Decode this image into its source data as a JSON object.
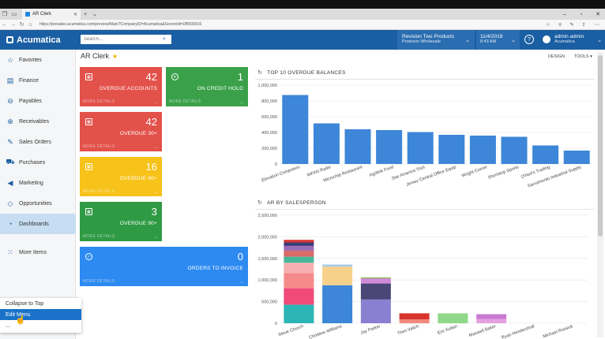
{
  "browser": {
    "tab_title": "AR Clerk",
    "url": "https://presales.acumatica.com/preview/Main?CompanyID=Acumatica&ScreenId=DB000016"
  },
  "header": {
    "logo_text": "Acumatica",
    "search_placeholder": "Search...",
    "company_name": "Revision Two Products",
    "company_branch": "Products Wholesale",
    "date": "11/4/2019",
    "time": "8:43 AM",
    "user_name": "admin admin",
    "user_company": "Acumatica"
  },
  "sidebar": {
    "items": [
      {
        "label": "Favorites",
        "icon": "star-icon"
      },
      {
        "label": "Finance",
        "icon": "calculator-icon"
      },
      {
        "label": "Payables",
        "icon": "minus-circle-icon"
      },
      {
        "label": "Receivables",
        "icon": "plus-circle-icon"
      },
      {
        "label": "Sales Orders",
        "icon": "edit-icon"
      },
      {
        "label": "Purchases",
        "icon": "cart-icon"
      },
      {
        "label": "Marketing",
        "icon": "megaphone-icon"
      },
      {
        "label": "Opportunities",
        "icon": "tag-icon"
      },
      {
        "label": "Dashboards",
        "icon": "gauge-icon"
      },
      {
        "label": "More Items",
        "icon": "grid-icon"
      }
    ],
    "active": "Dashboards",
    "menu": {
      "collapse": "Collapse to Top",
      "edit": "Edit Menu",
      "more": "..."
    }
  },
  "workspace": {
    "title": "AR Clerk",
    "design": "DESIGN",
    "tools": "TOOLS"
  },
  "tiles": [
    {
      "value": "42",
      "caption": "OVERDUE ACCOUNTS",
      "color": "#e2514a",
      "more": "MORE DETAILS"
    },
    {
      "value": "1",
      "caption": "ON CREDIT HOLD",
      "color": "#3aa14a",
      "more": "MORE DETAILS"
    },
    {
      "value": "42",
      "caption": "OVERDUE 30+",
      "color": "#e2514a",
      "more": "MORE DETAILS"
    },
    {
      "value": "16",
      "caption": "OVERDUE 60+",
      "color": "#f7c21a",
      "more": "MORE DETAILS"
    },
    {
      "value": "3",
      "caption": "OVERDUE 90+",
      "color": "#2f9a44",
      "more": "MORE DETAILS"
    },
    {
      "value": "0",
      "caption": "ORDERS TO INVOICE",
      "color": "#2d8af0",
      "more": "MORE DETAILS"
    }
  ],
  "chart_data": [
    {
      "type": "bar",
      "title": "TOP 10 OVERDUE BALANCES",
      "categories": [
        "Elevation Computers",
        "WFAN Radio",
        "Microchip Restaurant",
        "Agrilink Food",
        "Star America Toys",
        "Jersey Central Office Equip",
        "Wright Corner",
        "Shortstop Sports",
        "O'Neil's Trading",
        "Sacramento Industrial Supply"
      ],
      "values": [
        875000,
        515000,
        440000,
        430000,
        405000,
        370000,
        360000,
        345000,
        235000,
        170000
      ],
      "ylim": [
        0,
        1000000
      ],
      "yticks": [
        "0",
        "200,000",
        "400,000",
        "600,000",
        "800,000",
        "1,000,000"
      ],
      "color": "#3d86d8"
    },
    {
      "type": "bar",
      "stacked": true,
      "title": "AR BY SALESPERSON",
      "categories": [
        "Steve Church",
        "Christine Williams",
        "Jay Parker",
        "Theo Valich",
        "Eric Kellan",
        "Maxwell Baker",
        "Ryan Hendershall",
        "Michael Russick"
      ],
      "ylim": [
        0,
        2500000
      ],
      "yticks": [
        "0",
        "500,000",
        "1,000,000",
        "1,500,000",
        "2,000,000",
        "2,500,000"
      ],
      "stacks": [
        [
          [
            430000,
            "#2bb5b5"
          ],
          [
            380000,
            "#f04a7a"
          ],
          [
            350000,
            "#f58a8a"
          ],
          [
            240000,
            "#f7b0b0"
          ],
          [
            140000,
            "#45b89a"
          ],
          [
            140000,
            "#d86a6a"
          ],
          [
            110000,
            "#9a6bb5"
          ],
          [
            80000,
            "#3a3d7a"
          ],
          [
            60000,
            "#d9342c"
          ]
        ],
        [
          [
            880000,
            "#3d86d8"
          ],
          [
            430000,
            "#f7d08a"
          ],
          [
            50000,
            "#a8cce8"
          ]
        ],
        [
          [
            550000,
            "#8a7fd0"
          ],
          [
            370000,
            "#4a4676"
          ],
          [
            120000,
            "#d08ad8"
          ],
          [
            20000,
            "#7fbf3a"
          ]
        ],
        [
          [
            90000,
            "#f08a7a"
          ],
          [
            140000,
            "#d9342c"
          ]
        ],
        [
          [
            230000,
            "#8fd88a"
          ]
        ],
        [
          [
            100000,
            "#e6a0e0"
          ],
          [
            110000,
            "#c77ad0"
          ]
        ],
        [],
        []
      ]
    }
  ]
}
